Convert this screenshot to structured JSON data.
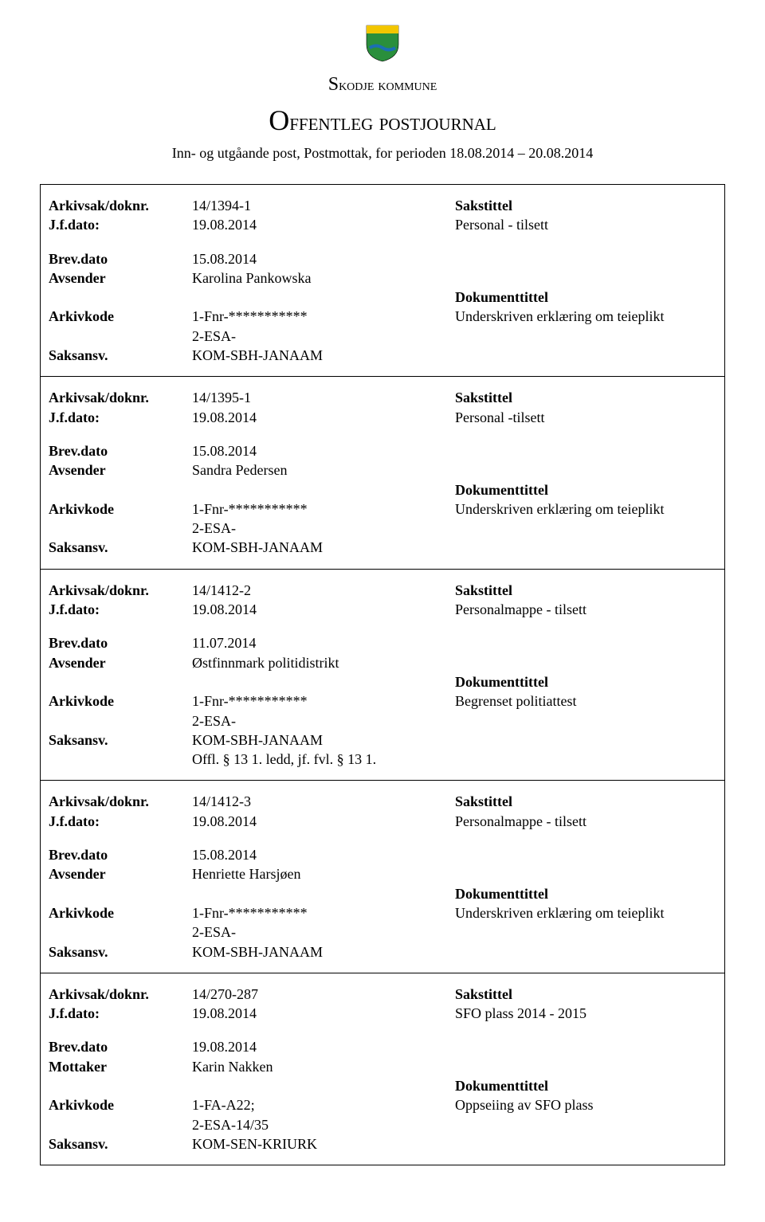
{
  "header": {
    "kommune": "Skodje kommune",
    "title": "Offentleg postjournal",
    "subtitle": "Inn- og utgåande post, Postmottak, for perioden 18.08.2014 – 20.08.2014",
    "shield_colors": {
      "top": "#f2c600",
      "body": "#2a8f3c",
      "wave": "#1b6fb3"
    }
  },
  "labels": {
    "doknr": "Arkivsak/doknr.",
    "jfdato": "J.f.dato:",
    "brevdato": "Brev.dato",
    "avsender": "Avsender",
    "mottaker": "Mottaker",
    "arkivkode": "Arkivkode",
    "saksansv": "Saksansv.",
    "sakstittel": "Sakstittel",
    "dokumenttittel": "Dokumenttittel"
  },
  "entries": [
    {
      "doknr": "14/1394-1",
      "jfdato": "19.08.2014",
      "sakstittel": "Personal - tilsett",
      "brevdato": "15.08.2014",
      "party_label": "Avsender",
      "party": "Karolina Pankowska",
      "arkivkode1": "1-Fnr-***********",
      "arkivkode2": "2-ESA-",
      "dokumenttittel": "Underskriven erklæring om teieplikt",
      "saksansv": "KOM-SBH-JANAAM",
      "extra": ""
    },
    {
      "doknr": "14/1395-1",
      "jfdato": "19.08.2014",
      "sakstittel": "Personal -tilsett",
      "brevdato": "15.08.2014",
      "party_label": "Avsender",
      "party": "Sandra Pedersen",
      "arkivkode1": "1-Fnr-***********",
      "arkivkode2": "2-ESA-",
      "dokumenttittel": "Underskriven erklæring om teieplikt",
      "saksansv": "KOM-SBH-JANAAM",
      "extra": ""
    },
    {
      "doknr": "14/1412-2",
      "jfdato": "19.08.2014",
      "sakstittel": "Personalmappe - tilsett",
      "brevdato": "11.07.2014",
      "party_label": "Avsender",
      "party": "Østfinnmark politidistrikt",
      "arkivkode1": "1-Fnr-***********",
      "arkivkode2": "2-ESA-",
      "dokumenttittel": "Begrenset politiattest",
      "saksansv": "KOM-SBH-JANAAM",
      "extra": "Offl. § 13 1. ledd, jf. fvl. § 13 1."
    },
    {
      "doknr": "14/1412-3",
      "jfdato": "19.08.2014",
      "sakstittel": "Personalmappe - tilsett",
      "brevdato": "15.08.2014",
      "party_label": "Avsender",
      "party": "Henriette Harsjøen",
      "arkivkode1": "1-Fnr-***********",
      "arkivkode2": "2-ESA-",
      "dokumenttittel": "Underskriven erklæring om teieplikt",
      "saksansv": "KOM-SBH-JANAAM",
      "extra": ""
    },
    {
      "doknr": "14/270-287",
      "jfdato": "19.08.2014",
      "sakstittel": "SFO plass 2014 - 2015",
      "brevdato": "19.08.2014",
      "party_label": "Mottaker",
      "party": "Karin Nakken",
      "arkivkode1": "1-FA-A22;",
      "arkivkode2": "2-ESA-14/35",
      "dokumenttittel": "Oppseiing av SFO plass",
      "saksansv": "KOM-SEN-KRIURK",
      "extra": ""
    }
  ]
}
